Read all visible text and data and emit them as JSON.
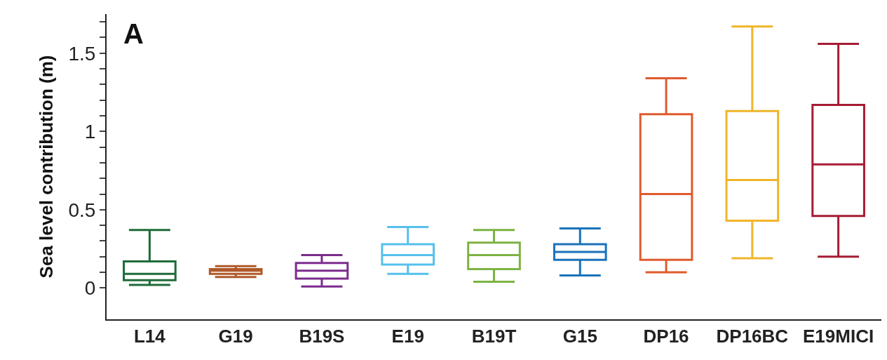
{
  "chart_data": {
    "type": "box",
    "title": "A",
    "ylabel": "Sea level contribution (m)",
    "categories": [
      "L14",
      "G19",
      "B19S",
      "E19",
      "B19T",
      "G15",
      "DP16",
      "DP16BC",
      "E19MICI"
    ],
    "colors": [
      "#1e6b38",
      "#b0592a",
      "#7b2d8e",
      "#56c0ec",
      "#7db343",
      "#1a72bb",
      "#e05a2b",
      "#efb52a",
      "#a61c33"
    ],
    "boxes": [
      {
        "low": 0.02,
        "q1": 0.05,
        "median": 0.09,
        "q3": 0.17,
        "high": 0.37
      },
      {
        "low": 0.07,
        "q1": 0.09,
        "median": 0.11,
        "q3": 0.12,
        "high": 0.14
      },
      {
        "low": 0.01,
        "q1": 0.06,
        "median": 0.11,
        "q3": 0.16,
        "high": 0.21
      },
      {
        "low": 0.09,
        "q1": 0.15,
        "median": 0.21,
        "q3": 0.28,
        "high": 0.39
      },
      {
        "low": 0.04,
        "q1": 0.12,
        "median": 0.21,
        "q3": 0.29,
        "high": 0.37
      },
      {
        "low": 0.08,
        "q1": 0.18,
        "median": 0.23,
        "q3": 0.28,
        "high": 0.38
      },
      {
        "low": 0.1,
        "q1": 0.18,
        "median": 0.6,
        "q3": 1.11,
        "high": 1.34
      },
      {
        "low": 0.19,
        "q1": 0.43,
        "median": 0.69,
        "q3": 1.13,
        "high": 1.67
      },
      {
        "low": 0.2,
        "q1": 0.46,
        "median": 0.79,
        "q3": 1.17,
        "high": 1.56
      }
    ],
    "ylim": [
      -0.2,
      1.75
    ],
    "yticks": [
      0,
      {
        "value": 0.1,
        "label": null
      },
      {
        "value": 0.2,
        "label": null
      },
      {
        "value": 0.3,
        "label": null
      },
      {
        "value": 0.4,
        "label": null
      },
      0.5,
      {
        "value": 0.6,
        "label": null
      },
      {
        "value": 0.7,
        "label": null
      },
      {
        "value": 0.8,
        "label": null
      },
      {
        "value": 0.9,
        "label": null
      },
      1,
      {
        "value": 1.1,
        "label": null
      },
      {
        "value": 1.2,
        "label": null
      },
      {
        "value": 1.3,
        "label": null
      },
      {
        "value": 1.4,
        "label": null
      },
      1.5,
      {
        "value": 1.6,
        "label": null
      },
      {
        "value": 1.7,
        "label": null
      }
    ],
    "grid": false
  }
}
